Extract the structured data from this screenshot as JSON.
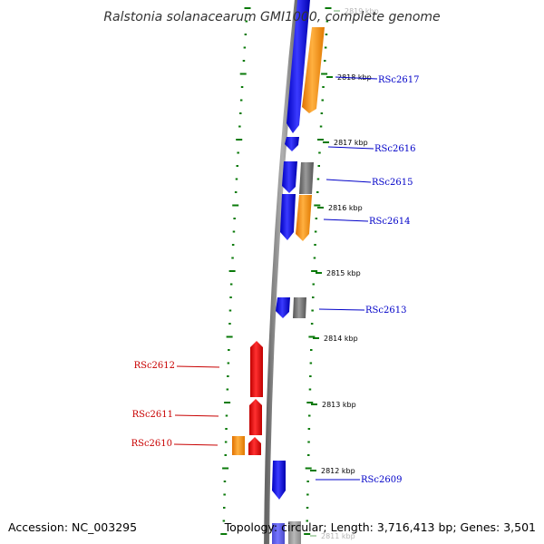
{
  "title": "Ralstonia solanacearum GMI1000, complete genome",
  "footer": {
    "accession": "Accession: NC_003295",
    "topology": "Topology: circular; Length: 3,716,413 bp; Genes: 3,501"
  },
  "colors": {
    "plus_strand_label": "#0000c8",
    "minus_strand_label": "#c80000",
    "blue_gene": "#1010e8",
    "orange_gene": "#ff8c00",
    "red_gene": "#e81010",
    "gray_gene": "#777777",
    "tick": "#0a7a0a",
    "backbone": "#8c8c8c"
  },
  "kbp_labels": [
    {
      "text": "2819 kbp",
      "faded": true
    },
    {
      "text": "2818 kbp",
      "faded": false
    },
    {
      "text": "2817 kbp",
      "faded": false
    },
    {
      "text": "2816 kbp",
      "faded": false
    },
    {
      "text": "2815 kbp",
      "faded": false
    },
    {
      "text": "2814 kbp",
      "faded": false
    },
    {
      "text": "2813 kbp",
      "faded": false
    },
    {
      "text": "2812 kbp",
      "faded": false
    },
    {
      "text": "2811 kbp",
      "faded": true
    }
  ],
  "gene_labels_plus": [
    "RSc2617",
    "RSc2616",
    "RSc2615",
    "RSc2614",
    "RSc2613",
    "RSc2609"
  ],
  "gene_labels_minus": [
    "RSc2612",
    "RSc2611",
    "RSc2610"
  ]
}
